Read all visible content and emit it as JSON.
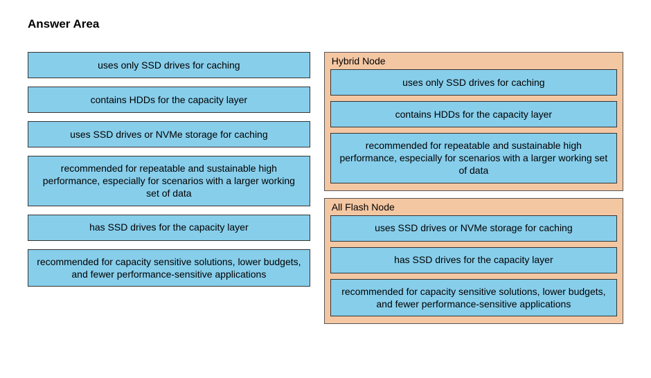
{
  "heading": "Answer Area",
  "colors": {
    "item_bg": "#87ceeb",
    "item_border": "#333333",
    "zone_bg": "#f4c7a3",
    "zone_border": "#555555",
    "text": "#000000",
    "page_bg": "#ffffff"
  },
  "source_items": [
    "uses only SSD drives for caching",
    "contains HDDs for the capacity layer",
    "uses SSD drives or NVMe storage for caching",
    "recommended for repeatable and sustainable high performance, especially for scenarios with a larger working set of data",
    "has SSD drives for the capacity layer",
    "recommended for capacity sensitive solutions, lower budgets, and fewer performance-sensitive applications"
  ],
  "drop_zones": [
    {
      "label": "Hybrid Node",
      "items": [
        "uses only SSD drives for caching",
        "contains HDDs for the capacity layer",
        "recommended for repeatable and sustainable high performance, especially for scenarios with a larger working set of data"
      ]
    },
    {
      "label": "All Flash Node",
      "items": [
        "uses SSD drives or NVMe storage for caching",
        "has SSD drives for the capacity layer",
        "recommended for capacity sensitive solutions, lower budgets, and fewer performance-sensitive applications"
      ]
    }
  ]
}
